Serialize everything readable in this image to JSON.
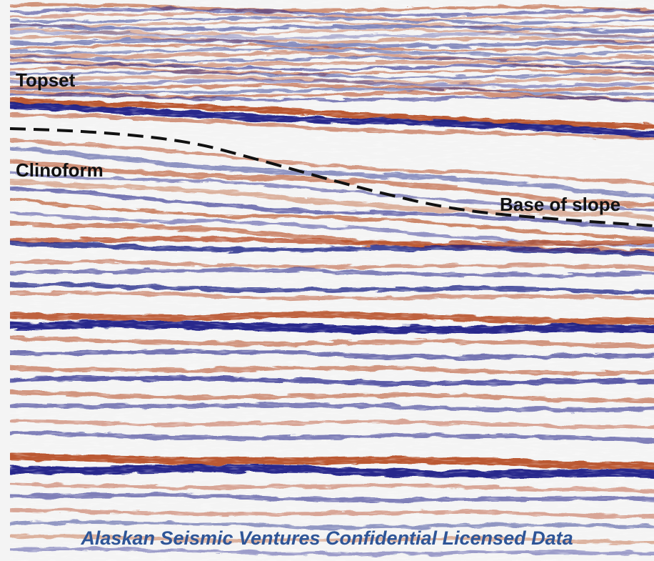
{
  "annotations": {
    "topset": "Topset",
    "clinoform": "Clinoform",
    "base_of_slope": "Base of slope"
  },
  "watermark": "Alaskan Seismic Ventures Confidential Licensed Data",
  "colors": {
    "positive_amplitude": "#b5481f",
    "negative_amplitude": "#1c1f86",
    "background": "#f4f4f4",
    "interpretation_line": "#111111",
    "watermark": "#2e5597"
  }
}
